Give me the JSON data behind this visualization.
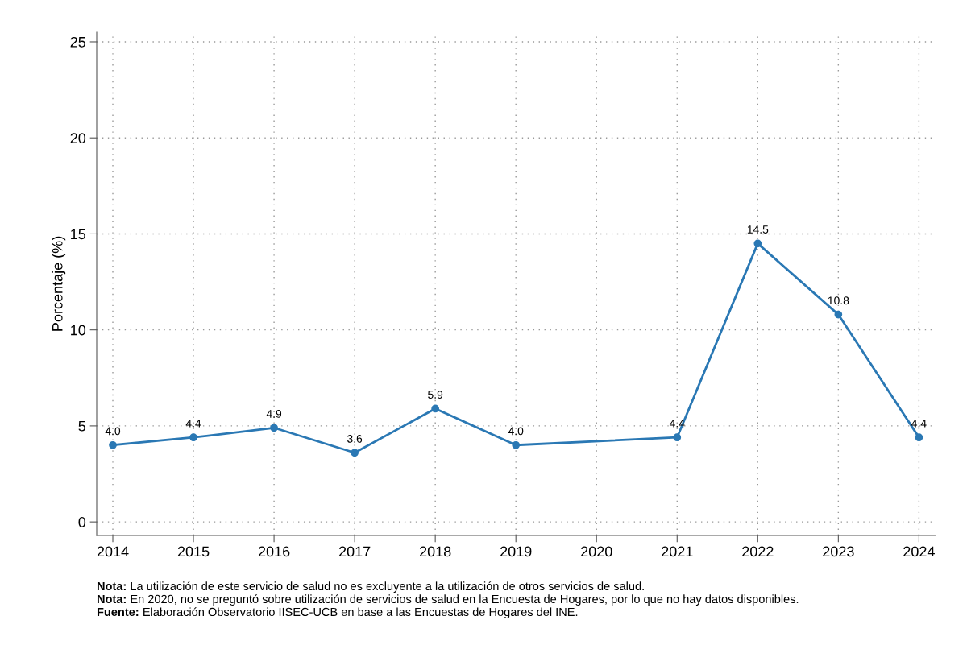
{
  "chart_data": {
    "type": "line",
    "ylabel": "Porcentaje (%)",
    "x": [
      2014,
      2015,
      2016,
      2017,
      2018,
      2019,
      2021,
      2022,
      2023,
      2024
    ],
    "series": [
      {
        "color": "#2a78b4",
        "values": [
          4.0,
          4.4,
          4.9,
          3.6,
          5.9,
          4.0,
          4.4,
          14.5,
          10.8,
          4.4
        ],
        "value_labels": [
          "4.0",
          "4.4",
          "4.9",
          "3.6",
          "5.9",
          "4.0",
          "4.4",
          "14.5",
          "10.8",
          "4.4"
        ]
      }
    ],
    "xlim": [
      2013.8,
      2024.2
    ],
    "xticks": [
      2014,
      2015,
      2016,
      2017,
      2018,
      2019,
      2020,
      2021,
      2022,
      2023,
      2024
    ],
    "ylim": [
      -0.7,
      25.5
    ],
    "yticks": [
      0,
      5,
      10,
      15,
      20,
      25
    ],
    "grid": true,
    "marker": "circle",
    "line_style": "solid",
    "legend": false,
    "annotations": [
      "Nota: La utilización de este servicio de salud no es excluyente a la utilización de otros servicios de salud.",
      "Nota: En 2020, no se preguntó sobre utilización de servicios de salud en la Encuesta de Hogares, por lo que no hay datos disponibles.",
      "Fuente: Elaboración Observatorio IISEC-UCB en base a las Encuestas de Hogares del INE."
    ]
  }
}
